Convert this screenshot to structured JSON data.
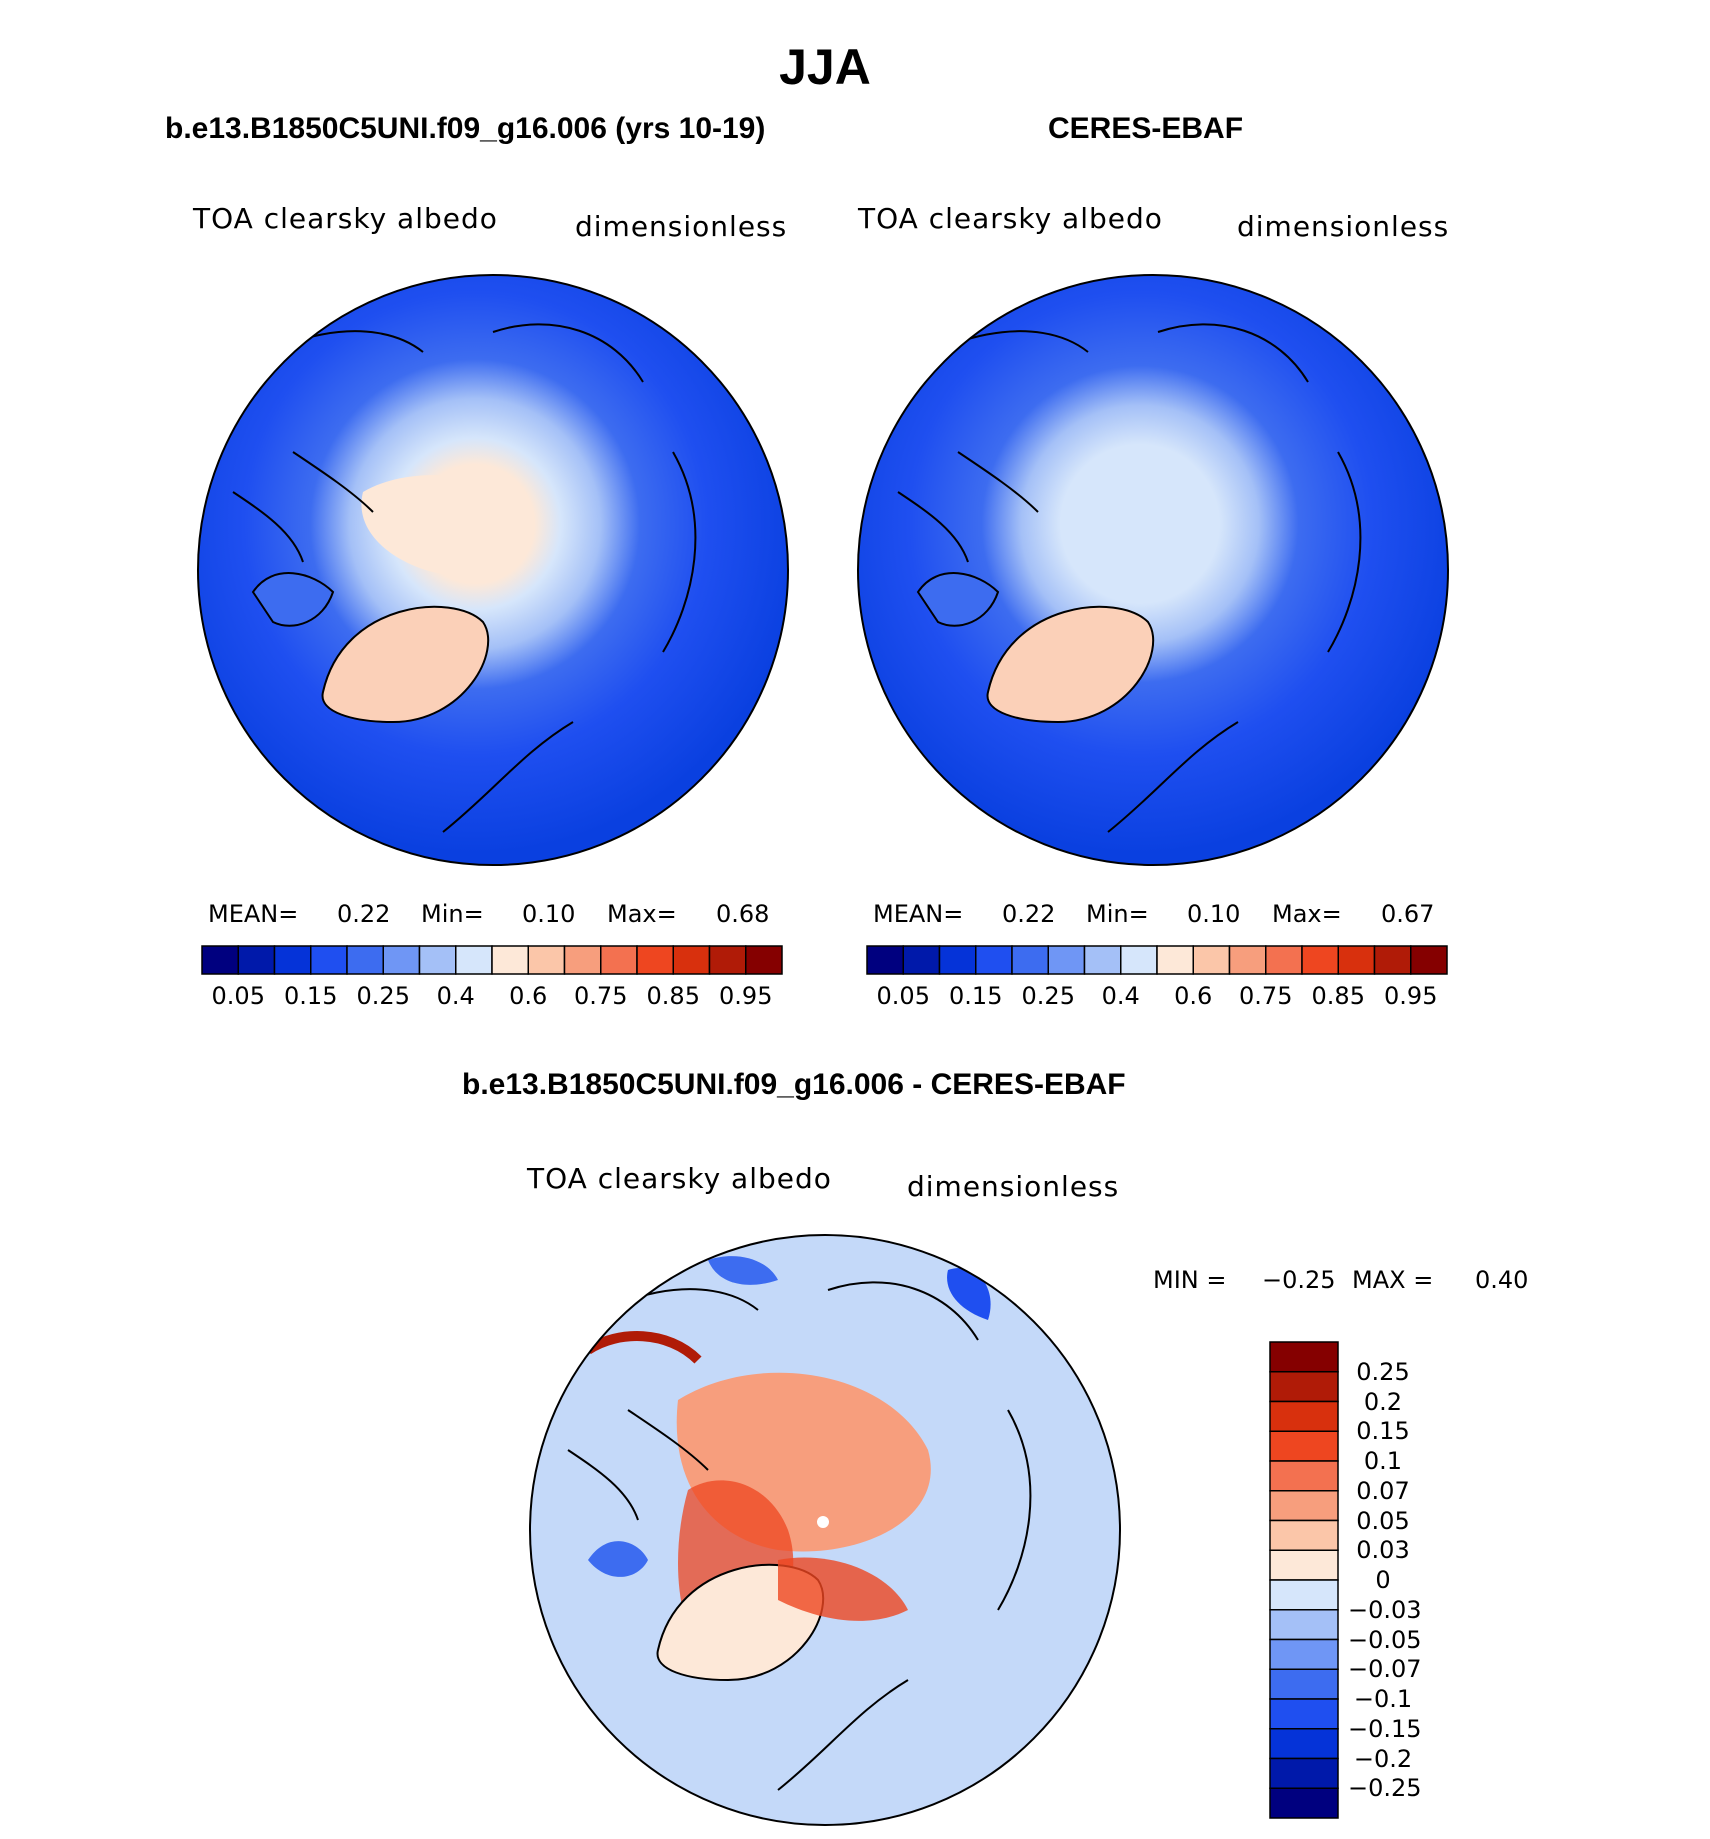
{
  "title": "JJA",
  "panels": [
    {
      "id": "model",
      "title": "b.e13.B1850C5UNI.f09_g16.006 (yrs 10-19)",
      "variable": "TOA clearsky albedo",
      "units": "dimensionless",
      "stats": {
        "mean_label": "MEAN=",
        "mean": "0.22",
        "min_label": "Min=",
        "min": "0.10",
        "max_label": "Max=",
        "max": "0.68"
      }
    },
    {
      "id": "obs",
      "title": "CERES-EBAF",
      "variable": "TOA clearsky albedo",
      "units": "dimensionless",
      "stats": {
        "mean_label": "MEAN=",
        "mean": "0.22",
        "min_label": "Min=",
        "min": "0.10",
        "max_label": "Max=",
        "max": "0.67"
      }
    },
    {
      "id": "diff",
      "title": "b.e13.B1850C5UNI.f09_g16.006 - CERES-EBAF",
      "variable": "TOA clearsky albedo",
      "units": "dimensionless",
      "minmax": {
        "min_label": "MIN =",
        "min": "−0.25",
        "max_label": "MAX =",
        "max": "0.40"
      }
    }
  ],
  "colorbar_abs": {
    "tick_labels": [
      "0.05",
      "0.15",
      "0.25",
      "0.4",
      "0.6",
      "0.75",
      "0.85",
      "0.95"
    ],
    "colors": [
      "#00007f",
      "#0019aa",
      "#0533d8",
      "#1f4ff0",
      "#3d6cf0",
      "#6f96f5",
      "#a4c0f7",
      "#d6e6fb",
      "#fde8d8",
      "#fbc6a9",
      "#f79e7d",
      "#f37150",
      "#ee4620",
      "#d8300d",
      "#b01b07",
      "#850000"
    ]
  },
  "colorbar_diff": {
    "tick_labels": [
      "0.25",
      "0.2",
      "0.15",
      "0.1",
      "0.07",
      "0.05",
      "0.03",
      "0",
      "−0.03",
      "−0.05",
      "−0.07",
      "−0.1",
      "−0.15",
      "−0.2",
      "−0.25"
    ],
    "colors_top_to_bottom": [
      "#850000",
      "#b01b07",
      "#d8300d",
      "#ee4620",
      "#f37150",
      "#f79e7d",
      "#fbc6a9",
      "#fde8d8",
      "#d6e6fb",
      "#a4c0f7",
      "#6f96f5",
      "#3d6cf0",
      "#1f4ff0",
      "#0533d8",
      "#0019aa",
      "#00007f"
    ]
  },
  "map_colors": {
    "ocean_low": "#0a40e0",
    "ocean_mid": "#2f62ee",
    "ice_light": "#d6e6fb",
    "ice_mid": "#a4c0f7",
    "greenland": "#fbd0b8",
    "pole": "#fde8d8",
    "diff_bg": "#d6e6fb",
    "diff_warm": "#f79e7d",
    "diff_hot": "#ee4620",
    "diff_neg": "#6f96f5"
  }
}
